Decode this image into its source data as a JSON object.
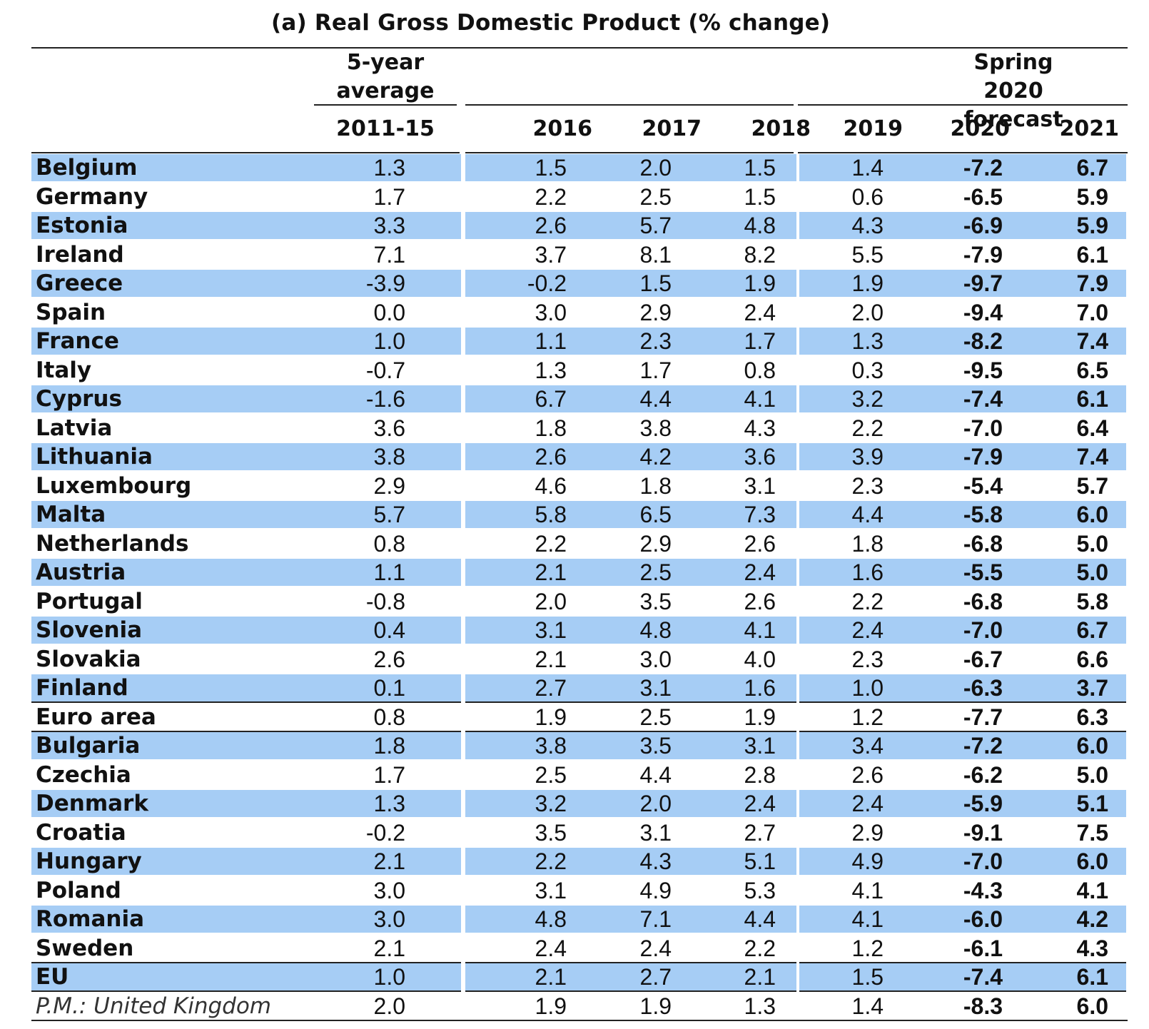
{
  "title": "(a) Real Gross Domestic Product (% change)",
  "header": {
    "avg_group": "5-year\naverage",
    "forecast_group": "Spring 2020\nforecast",
    "columns": [
      "2011-15",
      "2016",
      "2017",
      "2018",
      "2019",
      "2020",
      "2021"
    ]
  },
  "rows": [
    {
      "country": "Belgium",
      "values": [
        "1.3",
        "1.5",
        "2.0",
        "1.5",
        "1.4",
        "-7.2",
        "6.7"
      ],
      "shaded": true
    },
    {
      "country": "Germany",
      "values": [
        "1.7",
        "2.2",
        "2.5",
        "1.5",
        "0.6",
        "-6.5",
        "5.9"
      ],
      "shaded": false
    },
    {
      "country": "Estonia",
      "values": [
        "3.3",
        "2.6",
        "5.7",
        "4.8",
        "4.3",
        "-6.9",
        "5.9"
      ],
      "shaded": true
    },
    {
      "country": "Ireland",
      "values": [
        "7.1",
        "3.7",
        "8.1",
        "8.2",
        "5.5",
        "-7.9",
        "6.1"
      ],
      "shaded": false
    },
    {
      "country": "Greece",
      "values": [
        "-3.9",
        "-0.2",
        "1.5",
        "1.9",
        "1.9",
        "-9.7",
        "7.9"
      ],
      "shaded": true
    },
    {
      "country": "Spain",
      "values": [
        "0.0",
        "3.0",
        "2.9",
        "2.4",
        "2.0",
        "-9.4",
        "7.0"
      ],
      "shaded": false
    },
    {
      "country": "France",
      "values": [
        "1.0",
        "1.1",
        "2.3",
        "1.7",
        "1.3",
        "-8.2",
        "7.4"
      ],
      "shaded": true
    },
    {
      "country": "Italy",
      "values": [
        "-0.7",
        "1.3",
        "1.7",
        "0.8",
        "0.3",
        "-9.5",
        "6.5"
      ],
      "shaded": false
    },
    {
      "country": "Cyprus",
      "values": [
        "-1.6",
        "6.7",
        "4.4",
        "4.1",
        "3.2",
        "-7.4",
        "6.1"
      ],
      "shaded": true
    },
    {
      "country": "Latvia",
      "values": [
        "3.6",
        "1.8",
        "3.8",
        "4.3",
        "2.2",
        "-7.0",
        "6.4"
      ],
      "shaded": false
    },
    {
      "country": "Lithuania",
      "values": [
        "3.8",
        "2.6",
        "4.2",
        "3.6",
        "3.9",
        "-7.9",
        "7.4"
      ],
      "shaded": true
    },
    {
      "country": "Luxembourg",
      "values": [
        "2.9",
        "4.6",
        "1.8",
        "3.1",
        "2.3",
        "-5.4",
        "5.7"
      ],
      "shaded": false
    },
    {
      "country": "Malta",
      "values": [
        "5.7",
        "5.8",
        "6.5",
        "7.3",
        "4.4",
        "-5.8",
        "6.0"
      ],
      "shaded": true
    },
    {
      "country": "Netherlands",
      "values": [
        "0.8",
        "2.2",
        "2.9",
        "2.6",
        "1.8",
        "-6.8",
        "5.0"
      ],
      "shaded": false
    },
    {
      "country": "Austria",
      "values": [
        "1.1",
        "2.1",
        "2.5",
        "2.4",
        "1.6",
        "-5.5",
        "5.0"
      ],
      "shaded": true
    },
    {
      "country": "Portugal",
      "values": [
        "-0.8",
        "2.0",
        "3.5",
        "2.6",
        "2.2",
        "-6.8",
        "5.8"
      ],
      "shaded": false
    },
    {
      "country": "Slovenia",
      "values": [
        "0.4",
        "3.1",
        "4.8",
        "4.1",
        "2.4",
        "-7.0",
        "6.7"
      ],
      "shaded": true
    },
    {
      "country": "Slovakia",
      "values": [
        "2.6",
        "2.1",
        "3.0",
        "4.0",
        "2.3",
        "-6.7",
        "6.6"
      ],
      "shaded": false
    },
    {
      "country": "Finland",
      "values": [
        "0.1",
        "2.7",
        "3.1",
        "1.6",
        "1.0",
        "-6.3",
        "3.7"
      ],
      "shaded": true
    },
    {
      "country": "Euro area",
      "values": [
        "0.8",
        "1.9",
        "2.5",
        "1.9",
        "1.2",
        "-7.7",
        "6.3"
      ],
      "shaded": false
    },
    {
      "country": "Bulgaria",
      "values": [
        "1.8",
        "3.8",
        "3.5",
        "3.1",
        "3.4",
        "-7.2",
        "6.0"
      ],
      "shaded": true
    },
    {
      "country": "Czechia",
      "values": [
        "1.7",
        "2.5",
        "4.4",
        "2.8",
        "2.6",
        "-6.2",
        "5.0"
      ],
      "shaded": false
    },
    {
      "country": "Denmark",
      "values": [
        "1.3",
        "3.2",
        "2.0",
        "2.4",
        "2.4",
        "-5.9",
        "5.1"
      ],
      "shaded": true
    },
    {
      "country": "Croatia",
      "values": [
        "-0.2",
        "3.5",
        "3.1",
        "2.7",
        "2.9",
        "-9.1",
        "7.5"
      ],
      "shaded": false
    },
    {
      "country": "Hungary",
      "values": [
        "2.1",
        "2.2",
        "4.3",
        "5.1",
        "4.9",
        "-7.0",
        "6.0"
      ],
      "shaded": true
    },
    {
      "country": "Poland",
      "values": [
        "3.0",
        "3.1",
        "4.9",
        "5.3",
        "4.1",
        "-4.3",
        "4.1"
      ],
      "shaded": false
    },
    {
      "country": "Romania",
      "values": [
        "3.0",
        "4.8",
        "7.1",
        "4.4",
        "4.1",
        "-6.0",
        "4.2"
      ],
      "shaded": true
    },
    {
      "country": "Sweden",
      "values": [
        "2.1",
        "2.4",
        "2.4",
        "2.2",
        "1.2",
        "-6.1",
        "4.3"
      ],
      "shaded": false
    },
    {
      "country": "EU",
      "values": [
        "1.0",
        "2.1",
        "2.7",
        "2.1",
        "1.5",
        "-7.4",
        "6.1"
      ],
      "shaded": true
    },
    {
      "country": "P.M.: United Kingdom",
      "values": [
        "2.0",
        "1.9",
        "1.9",
        "1.3",
        "1.4",
        "-8.3",
        "6.0"
      ],
      "shaded": false,
      "italic": true
    }
  ],
  "colors": {
    "band": "#a6cdf5",
    "text": "#111111",
    "rules": "#222222"
  }
}
